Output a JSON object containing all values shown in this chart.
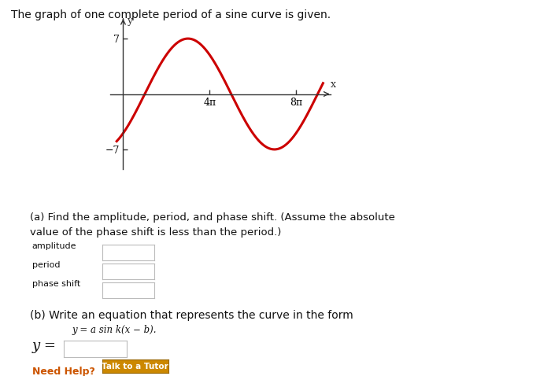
{
  "title_text": "The graph of one complete period of a sine curve is given.",
  "bg_color": "#ffffff",
  "curve_color": "#cc0000",
  "curve_linewidth": 2.2,
  "amplitude": 7,
  "phase_shift": 1.0,
  "y_label": "y",
  "x_label": "x",
  "x_ticks_labels": [
    "4π",
    "8π"
  ],
  "x_ticks_values": [
    4,
    8
  ],
  "y_ticks_labels": [
    "7",
    "−7"
  ],
  "y_ticks_values": [
    7,
    -7
  ],
  "axis_color": "#333333",
  "part_a_line1": "(a) Find the amplitude, period, and phase shift. (Assume the absolute",
  "part_a_line2": "value of the phase shift is less than the period.)",
  "part_b_text": "(b) Write an equation that represents the curve in the form",
  "formula_text": "y = a sin k(x − b).",
  "label_amplitude": "amplitude",
  "label_period": "period",
  "label_phase_shift": "phase shift",
  "label_y_eq": "y =",
  "need_help_text": "Need Help?",
  "tutor_btn_text": "Talk to a Tutor",
  "need_help_color": "#cc5500",
  "tutor_btn_bg": "#cc8800",
  "tutor_btn_fg": "#ffffff"
}
